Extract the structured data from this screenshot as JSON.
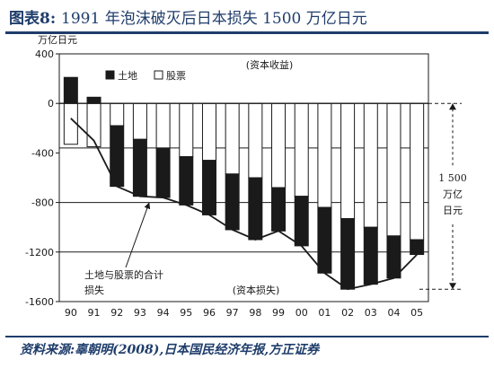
{
  "header": {
    "title_label": "图表8:",
    "title_text": "1991 年泡沫破灭后日本损失 1500 万亿日元"
  },
  "footer": {
    "source": "资料来源:辜朝明(2008),日本国民经济年报,方正证券"
  },
  "chart_data": {
    "type": "bar",
    "unit_label": "万亿日元",
    "categories": [
      "90",
      "91",
      "92",
      "93",
      "94",
      "95",
      "96",
      "97",
      "98",
      "99",
      "00",
      "01",
      "02",
      "03",
      "04",
      "05"
    ],
    "series": [
      {
        "name": "土地",
        "kind": "stacked-bar",
        "color": "#1a1a1a",
        "values": [
          210,
          50,
          -180,
          -290,
          -360,
          -430,
          -460,
          -570,
          -600,
          -680,
          -750,
          -840,
          -930,
          -1000,
          -1070,
          -1100
        ]
      },
      {
        "name": "股票",
        "kind": "stacked-bar",
        "color": "#ffffff",
        "values": [
          -330,
          -350,
          -490,
          -460,
          -400,
          -390,
          -440,
          -450,
          -500,
          -350,
          -400,
          -530,
          -570,
          -460,
          -340,
          -120
        ]
      },
      {
        "name": "土地与股票的合计损失",
        "kind": "line",
        "values": [
          -120,
          -300,
          -670,
          -750,
          -760,
          -820,
          -900,
          -1020,
          -1100,
          -1030,
          -1150,
          -1370,
          -1500,
          -1460,
          -1410,
          -1220
        ]
      }
    ],
    "ylim": [
      -1600,
      400
    ],
    "yticks": [
      400,
      0,
      -400,
      -800,
      -1200,
      -1600
    ],
    "ytick_labels": [
      "400",
      "0",
      "-400",
      "-800",
      "-1200",
      "-1600"
    ],
    "reference_lines": [
      -360,
      -800,
      -1200
    ],
    "legend": [
      "土地",
      "股票"
    ],
    "legend_position": "top",
    "annotations": {
      "gain": "(资本收益)",
      "loss": "(资本损失)",
      "total_line_1": "土地与股票的合计",
      "total_line_2": "损失",
      "bracket_value": "1 500",
      "bracket_unit_1": "万亿",
      "bracket_unit_2": "日元"
    },
    "bracket_range": [
      0,
      -1500
    ],
    "grid": false
  }
}
